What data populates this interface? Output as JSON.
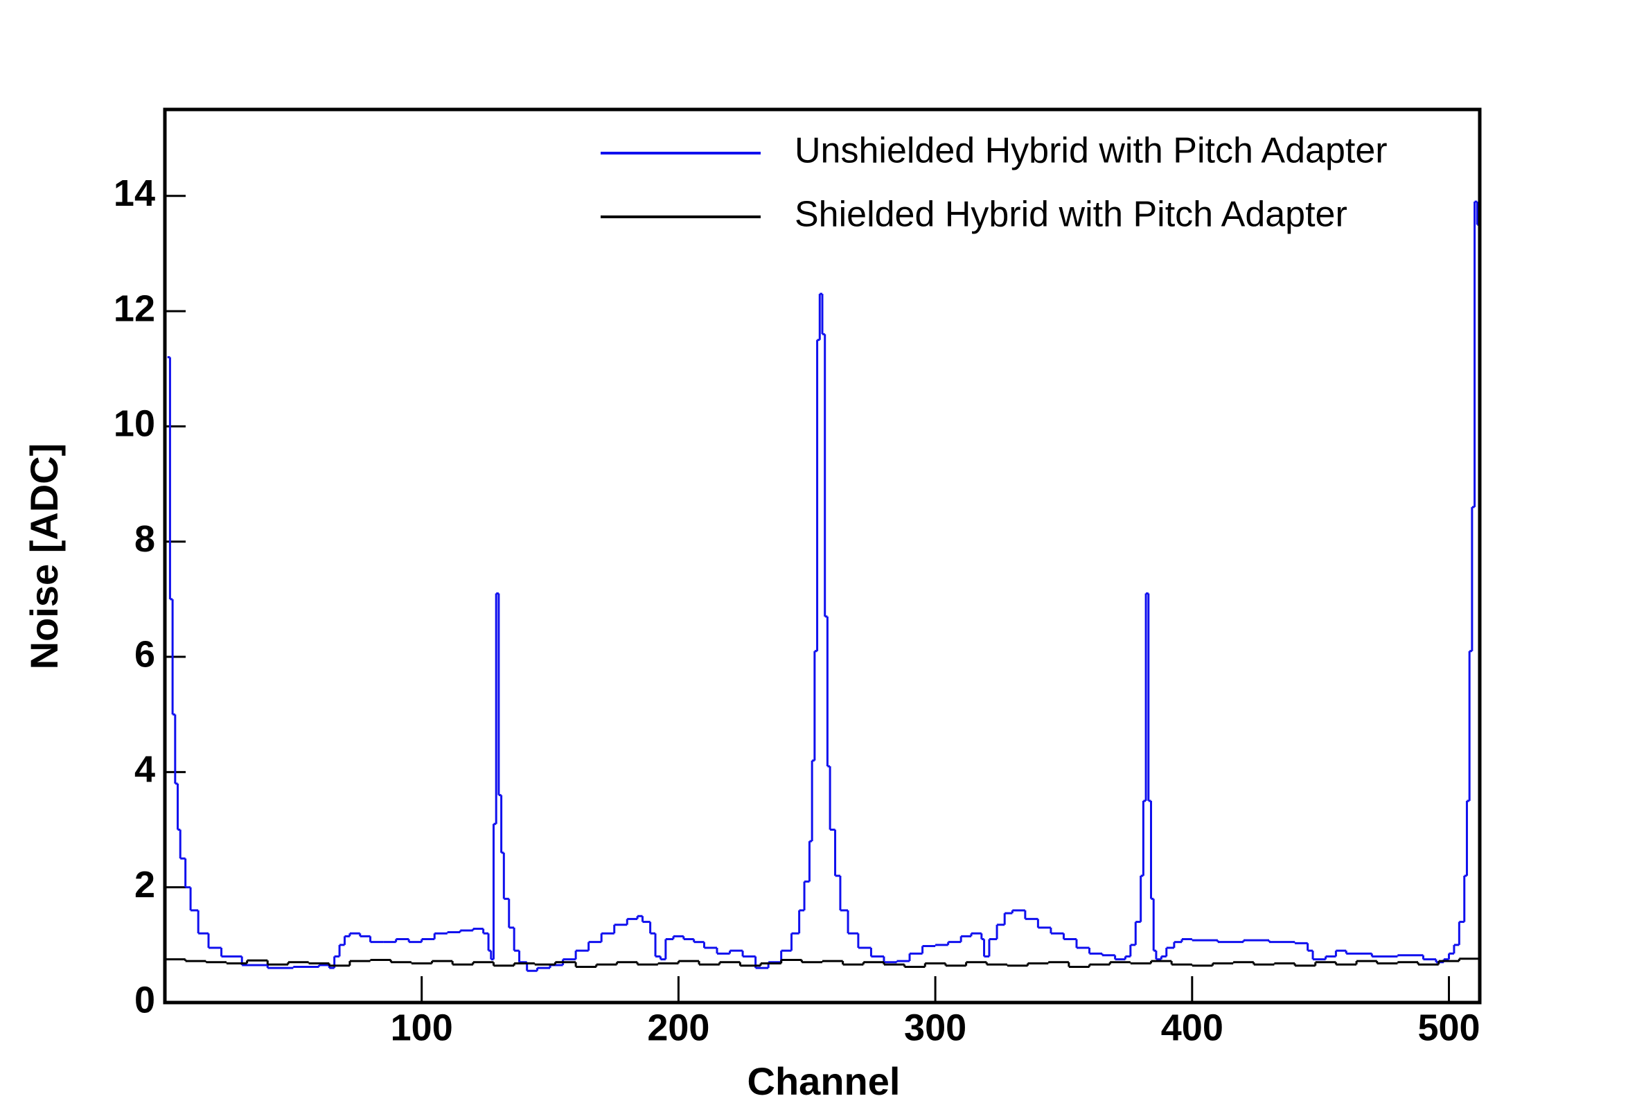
{
  "chart_data": {
    "type": "step",
    "x_label": "Channel",
    "y_label": "Noise [ADC]",
    "xlim": [
      0,
      512
    ],
    "ylim": [
      0,
      15.5
    ],
    "xticks": [
      100,
      200,
      300,
      400,
      500
    ],
    "yticks": [
      0,
      2,
      4,
      6,
      8,
      10,
      12,
      14
    ],
    "legend": "top-right",
    "series": [
      {
        "name": "Unshielded Hybrid with Pitch Adapter",
        "color": "#1010ee",
        "x": [
          1,
          2,
          3,
          4,
          5,
          6,
          8,
          10,
          13,
          17,
          22,
          30,
          40,
          50,
          60,
          64,
          66,
          68,
          70,
          72,
          76,
          80,
          85,
          90,
          95,
          100,
          105,
          110,
          115,
          120,
          124,
          126,
          127,
          128,
          129,
          130,
          131,
          132,
          134,
          136,
          138,
          141,
          145,
          150,
          155,
          160,
          165,
          170,
          175,
          180,
          184,
          186,
          189,
          191,
          193,
          195,
          198,
          202,
          206,
          210,
          215,
          220,
          225,
          230,
          235,
          240,
          244,
          247,
          249,
          251,
          252,
          253,
          254,
          255,
          256,
          257,
          258,
          259,
          261,
          263,
          266,
          270,
          275,
          280,
          285,
          290,
          295,
          300,
          305,
          310,
          314,
          318,
          319,
          321,
          324,
          327,
          330,
          335,
          340,
          345,
          350,
          355,
          360,
          365,
          370,
          374,
          376,
          378,
          380,
          381,
          382,
          383,
          384,
          385,
          386,
          388,
          390,
          393,
          396,
          400,
          410,
          420,
          430,
          440,
          445,
          447,
          452,
          456,
          460,
          470,
          480,
          490,
          495,
          498,
          500,
          502,
          504,
          506,
          507,
          508,
          509,
          510,
          511
        ],
        "values": [
          11.2,
          7,
          5,
          3.8,
          3,
          2.5,
          2,
          1.6,
          1.2,
          0.95,
          0.8,
          0.65,
          0.6,
          0.62,
          0.65,
          0.6,
          0.8,
          1.0,
          1.15,
          1.2,
          1.15,
          1.05,
          1.05,
          1.1,
          1.05,
          1.1,
          1.2,
          1.22,
          1.25,
          1.28,
          1.2,
          0.9,
          0.75,
          3.1,
          7.1,
          3.6,
          2.6,
          1.8,
          1.3,
          0.9,
          0.7,
          0.55,
          0.6,
          0.65,
          0.75,
          0.9,
          1.05,
          1.2,
          1.35,
          1.45,
          1.5,
          1.4,
          1.2,
          0.8,
          0.75,
          1.1,
          1.15,
          1.1,
          1.05,
          0.95,
          0.85,
          0.9,
          0.8,
          0.6,
          0.7,
          0.9,
          1.2,
          1.6,
          2.1,
          2.8,
          4.2,
          6.1,
          11.5,
          12.3,
          11.6,
          6.7,
          4.1,
          3.0,
          2.2,
          1.6,
          1.2,
          0.95,
          0.8,
          0.7,
          0.72,
          0.85,
          0.98,
          1.0,
          1.05,
          1.15,
          1.2,
          1.1,
          0.8,
          1.1,
          1.35,
          1.55,
          1.6,
          1.45,
          1.3,
          1.2,
          1.1,
          0.95,
          0.85,
          0.82,
          0.75,
          0.8,
          1.0,
          1.4,
          2.2,
          3.5,
          7.1,
          3.5,
          1.8,
          0.9,
          0.75,
          0.8,
          0.95,
          1.05,
          1.1,
          1.08,
          1.05,
          1.08,
          1.05,
          1.03,
          0.9,
          0.75,
          0.8,
          0.9,
          0.85,
          0.8,
          0.82,
          0.75,
          0.7,
          0.75,
          0.85,
          1.0,
          1.4,
          2.2,
          3.5,
          6.1,
          8.6,
          13.9,
          13.5
        ]
      },
      {
        "name": "Shielded Hybrid with Pitch Adapter",
        "color": "#000000",
        "x": [
          0,
          8,
          16,
          24,
          32,
          40,
          48,
          56,
          64,
          72,
          80,
          88,
          96,
          104,
          112,
          120,
          128,
          136,
          144,
          152,
          160,
          168,
          176,
          184,
          192,
          200,
          208,
          216,
          224,
          232,
          240,
          248,
          256,
          264,
          272,
          280,
          288,
          296,
          304,
          312,
          320,
          328,
          336,
          344,
          352,
          360,
          368,
          376,
          384,
          392,
          400,
          408,
          416,
          424,
          432,
          440,
          448,
          456,
          464,
          472,
          480,
          488,
          496,
          504
        ],
        "values": [
          0.75,
          0.72,
          0.7,
          0.68,
          0.73,
          0.66,
          0.7,
          0.68,
          0.64,
          0.72,
          0.74,
          0.7,
          0.68,
          0.72,
          0.66,
          0.7,
          0.64,
          0.68,
          0.66,
          0.7,
          0.62,
          0.66,
          0.7,
          0.66,
          0.68,
          0.72,
          0.66,
          0.7,
          0.64,
          0.68,
          0.74,
          0.7,
          0.72,
          0.66,
          0.7,
          0.66,
          0.62,
          0.68,
          0.64,
          0.7,
          0.66,
          0.64,
          0.68,
          0.7,
          0.62,
          0.66,
          0.7,
          0.68,
          0.72,
          0.66,
          0.64,
          0.68,
          0.7,
          0.66,
          0.68,
          0.64,
          0.7,
          0.66,
          0.72,
          0.68,
          0.7,
          0.66,
          0.72,
          0.76
        ]
      }
    ]
  }
}
